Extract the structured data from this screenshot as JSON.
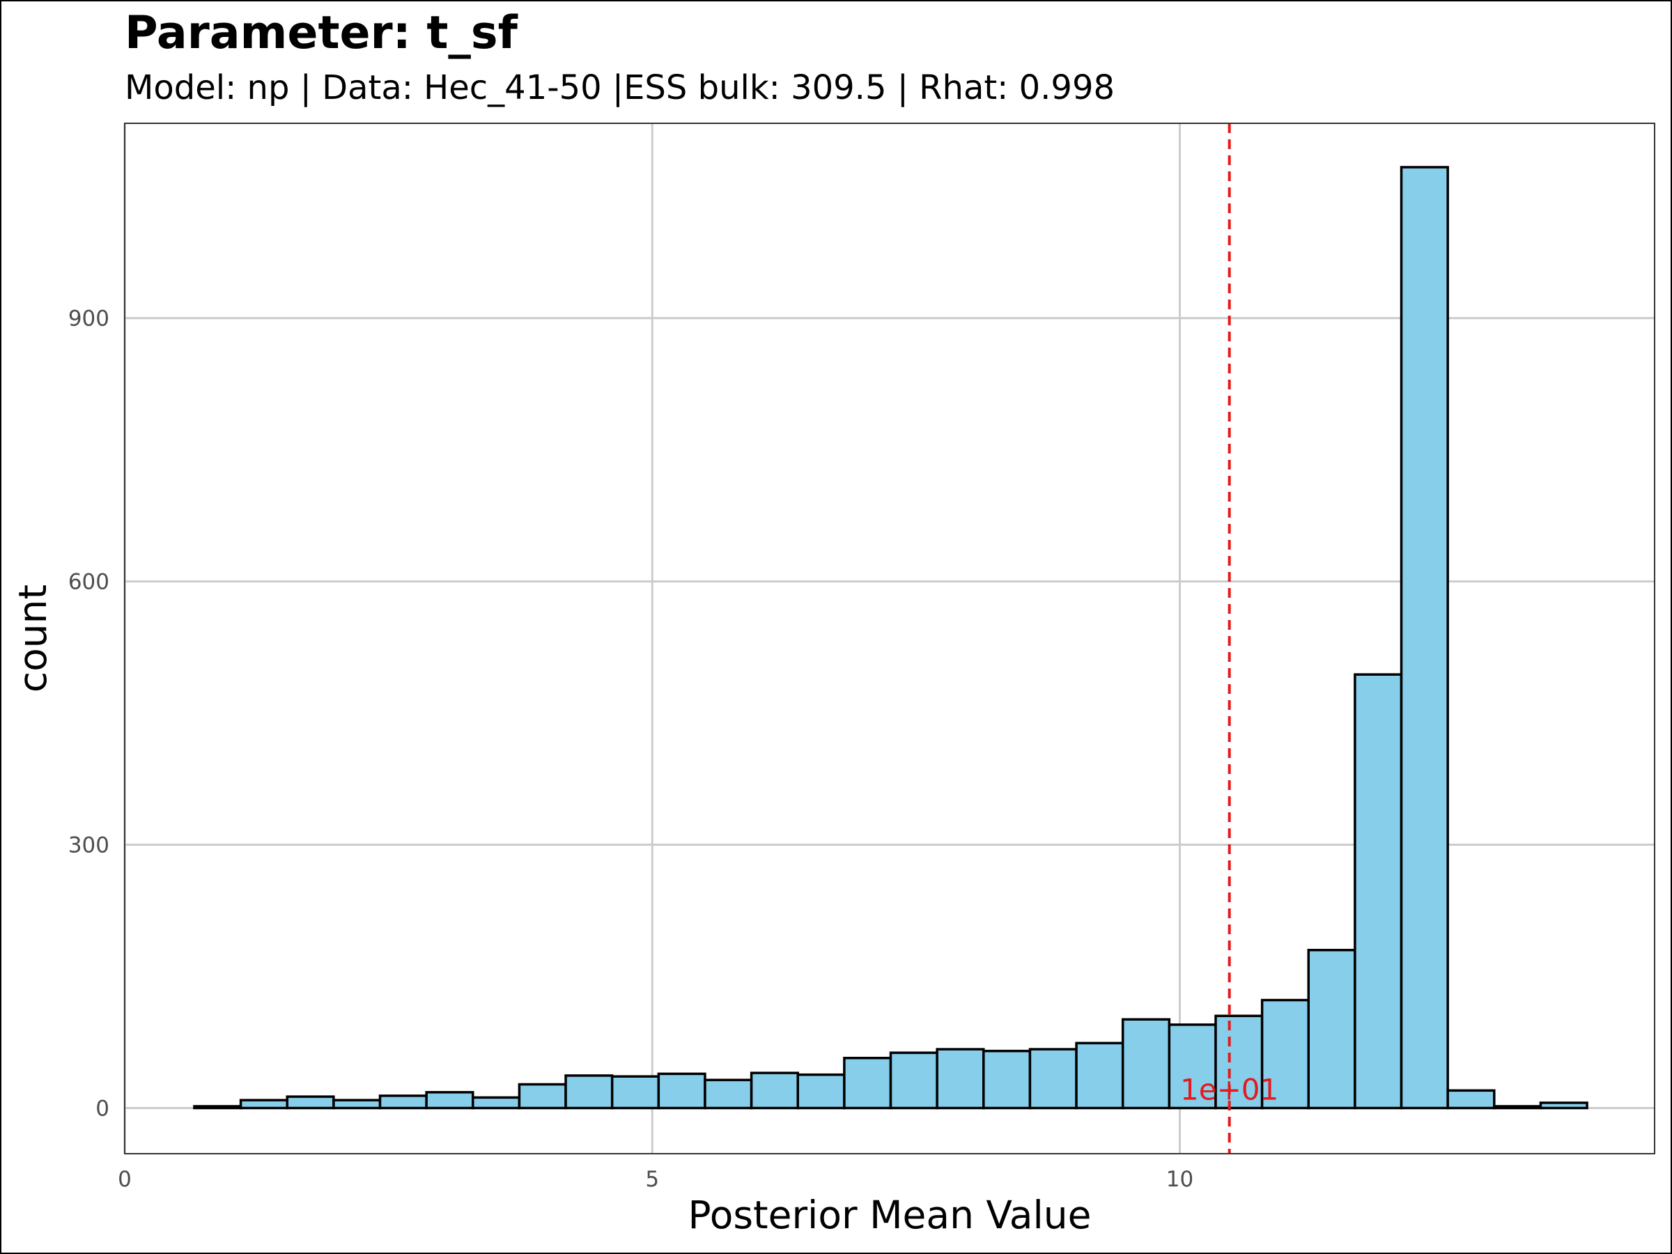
{
  "title": "Parameter: t_sf",
  "subtitle": "Model: np | Data: Hec_41-50 |ESS bulk: 309.5 | Rhat: 0.998",
  "colors": {
    "bar_fill": "#87CEEB",
    "bar_stroke": "#000000",
    "grid": "#cccccc",
    "reference_line": "#e41a1c"
  },
  "chart_data": {
    "type": "bar",
    "subtype": "histogram",
    "xlabel": "Posterior Mean Value",
    "ylabel": "count",
    "xlim": [
      0,
      14.5
    ],
    "ylim": [
      -52,
      1122
    ],
    "x_ticks": [
      0,
      5,
      10
    ],
    "x_tick_labels": [
      "0",
      "5",
      "10"
    ],
    "y_ticks": [
      0,
      300,
      600,
      900
    ],
    "y_tick_labels": [
      "0",
      "300",
      "600",
      "900"
    ],
    "grid": true,
    "bin_width": 0.44,
    "bins": [
      {
        "x0": 0.66,
        "x1": 1.1,
        "count": 2
      },
      {
        "x0": 1.1,
        "x1": 1.54,
        "count": 9
      },
      {
        "x0": 1.54,
        "x1": 1.98,
        "count": 13
      },
      {
        "x0": 1.98,
        "x1": 2.42,
        "count": 9
      },
      {
        "x0": 2.42,
        "x1": 2.86,
        "count": 14
      },
      {
        "x0": 2.86,
        "x1": 3.3,
        "count": 18
      },
      {
        "x0": 3.3,
        "x1": 3.74,
        "count": 12
      },
      {
        "x0": 3.74,
        "x1": 4.18,
        "count": 27
      },
      {
        "x0": 4.18,
        "x1": 4.62,
        "count": 37
      },
      {
        "x0": 4.62,
        "x1": 5.06,
        "count": 36
      },
      {
        "x0": 5.06,
        "x1": 5.5,
        "count": 39
      },
      {
        "x0": 5.5,
        "x1": 5.94,
        "count": 32
      },
      {
        "x0": 5.94,
        "x1": 6.38,
        "count": 40
      },
      {
        "x0": 6.38,
        "x1": 6.82,
        "count": 38
      },
      {
        "x0": 6.82,
        "x1": 7.26,
        "count": 57
      },
      {
        "x0": 7.26,
        "x1": 7.7,
        "count": 63
      },
      {
        "x0": 7.7,
        "x1": 8.14,
        "count": 67
      },
      {
        "x0": 8.14,
        "x1": 8.58,
        "count": 65
      },
      {
        "x0": 8.58,
        "x1": 9.02,
        "count": 67
      },
      {
        "x0": 9.02,
        "x1": 9.46,
        "count": 74
      },
      {
        "x0": 9.46,
        "x1": 9.9,
        "count": 101
      },
      {
        "x0": 9.9,
        "x1": 10.34,
        "count": 95
      },
      {
        "x0": 10.34,
        "x1": 10.78,
        "count": 105
      },
      {
        "x0": 10.78,
        "x1": 11.22,
        "count": 123
      },
      {
        "x0": 11.22,
        "x1": 11.66,
        "count": 180
      },
      {
        "x0": 11.66,
        "x1": 12.1,
        "count": 494
      },
      {
        "x0": 12.1,
        "x1": 12.54,
        "count": 1072
      },
      {
        "x0": 12.54,
        "x1": 12.98,
        "count": 20
      },
      {
        "x0": 12.98,
        "x1": 13.42,
        "count": 2
      },
      {
        "x0": 13.42,
        "x1": 13.86,
        "count": 6
      }
    ],
    "reference_line": {
      "x": 10.47,
      "label": "1e+01",
      "style": "dashed"
    }
  }
}
